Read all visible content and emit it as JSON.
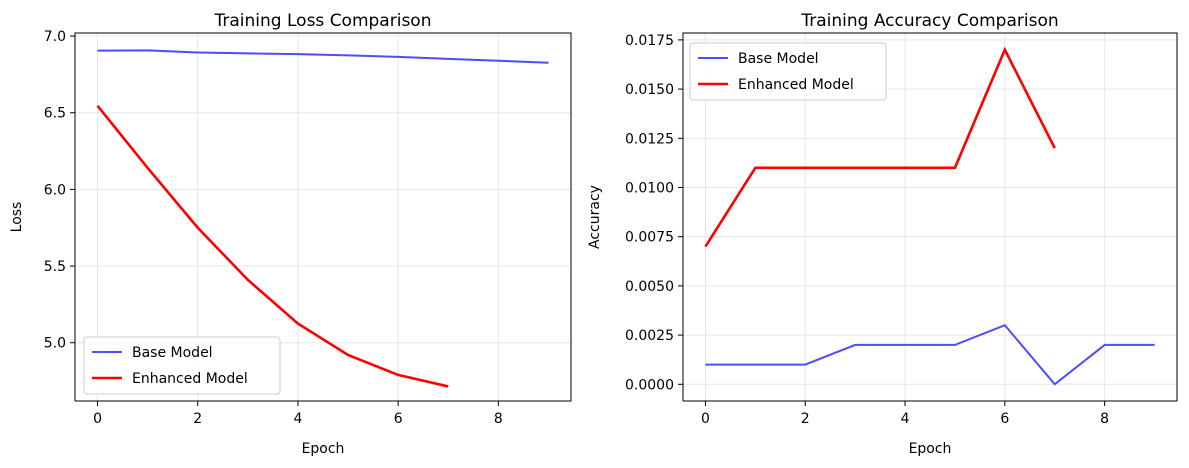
{
  "chart_data": [
    {
      "type": "line",
      "title": "Training Loss Comparison",
      "xlabel": "Epoch",
      "ylabel": "Loss",
      "xlim": [
        -0.45,
        9.45
      ],
      "ylim": [
        4.62,
        7.02
      ],
      "xticks": [
        0,
        2,
        4,
        6,
        8
      ],
      "yticks": [
        5.0,
        5.5,
        6.0,
        6.5,
        7.0
      ],
      "ytick_decimals": 1,
      "grid": true,
      "legend": "lower-left",
      "series": [
        {
          "name": "Base Model",
          "color": "#4d4dff",
          "width": 2,
          "x": [
            0,
            1,
            2,
            3,
            4,
            5,
            6,
            7,
            8,
            9
          ],
          "y": [
            6.905,
            6.907,
            6.893,
            6.887,
            6.882,
            6.874,
            6.864,
            6.851,
            6.839,
            6.826
          ]
        },
        {
          "name": "Enhanced Model",
          "color": "#ff0000",
          "width": 2.6,
          "x": [
            0,
            1,
            2,
            3,
            4,
            5,
            6,
            7
          ],
          "y": [
            6.545,
            6.14,
            5.75,
            5.41,
            5.125,
            4.92,
            4.79,
            4.715
          ]
        }
      ]
    },
    {
      "type": "line",
      "title": "Training Accuracy Comparison",
      "xlabel": "Epoch",
      "ylabel": "Accuracy",
      "xlim": [
        -0.45,
        9.45
      ],
      "ylim": [
        -0.00085,
        0.01785
      ],
      "xticks": [
        0,
        2,
        4,
        6,
        8
      ],
      "yticks": [
        0.0,
        0.0025,
        0.005,
        0.0075,
        0.01,
        0.0125,
        0.015,
        0.0175
      ],
      "ytick_decimals": 4,
      "grid": true,
      "legend": "upper-left",
      "series": [
        {
          "name": "Base Model",
          "color": "#4d4dff",
          "width": 2,
          "x": [
            0,
            1,
            2,
            3,
            4,
            5,
            6,
            7,
            8,
            9
          ],
          "y": [
            0.001,
            0.001,
            0.001,
            0.002,
            0.002,
            0.002,
            0.003,
            0.0,
            0.002,
            0.002
          ]
        },
        {
          "name": "Enhanced Model",
          "color": "#ff0000",
          "width": 2.6,
          "x": [
            0,
            1,
            2,
            3,
            4,
            5,
            6,
            7
          ],
          "y": [
            0.007,
            0.011,
            0.011,
            0.011,
            0.011,
            0.011,
            0.017,
            0.012
          ]
        }
      ]
    }
  ]
}
